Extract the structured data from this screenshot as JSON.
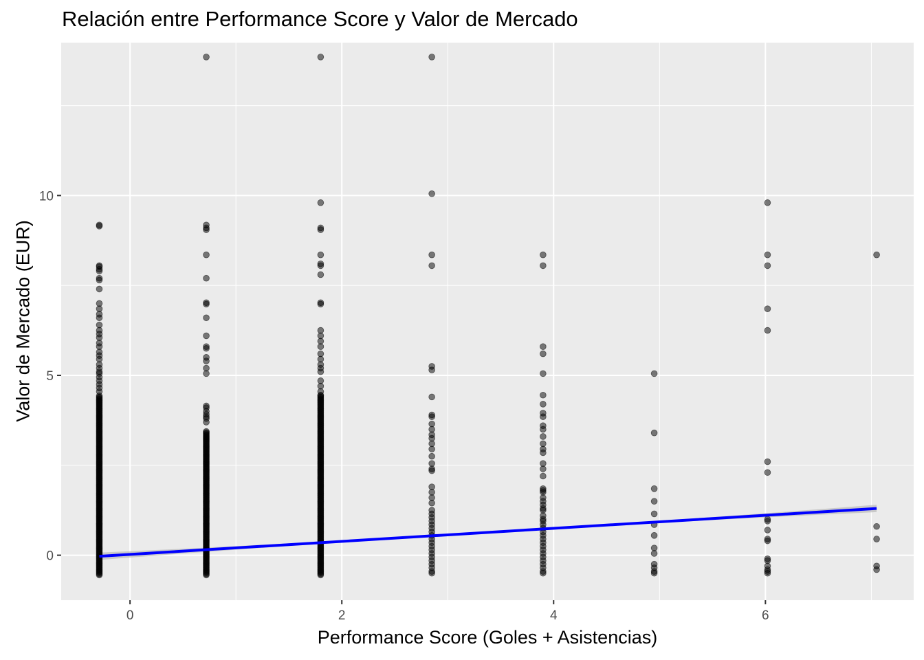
{
  "chart_data": {
    "type": "scatter",
    "title": "Relación entre Performance Score y Valor de Mercado",
    "xlabel": "Performance Score (Goles + Asistencias)",
    "ylabel": "Valor de Mercado (EUR)",
    "xlim": [
      -0.65,
      7.4
    ],
    "ylim": [
      -1.25,
      14.25
    ],
    "x_ticks": [
      0,
      2,
      4,
      6
    ],
    "y_ticks": [
      0,
      5,
      10
    ],
    "grid": true,
    "legend": "none",
    "colors": {
      "panel_background": "#EBEBEB",
      "grid": "#FFFFFF",
      "points": "#000000",
      "trend_line": "#0000FF",
      "confidence_band": "#BEBEBE"
    },
    "series": [
      {
        "kind": "points",
        "groups": [
          {
            "x": -0.29,
            "dense_range": [
              -0.55,
              4.45
            ],
            "values": [
              9.18,
              9.15,
              8.05,
              8.02,
              7.95,
              7.9,
              7.7,
              7.65,
              7.4,
              7.0,
              6.85,
              6.7,
              6.6,
              6.4,
              6.25,
              6.15,
              6.05,
              5.9,
              5.8,
              5.65,
              5.55,
              5.45,
              5.3,
              5.2,
              5.1,
              5.05,
              4.95,
              4.85,
              4.75,
              4.65,
              4.55
            ]
          },
          {
            "x": 0.72,
            "dense_range": [
              -0.55,
              3.45
            ],
            "values": [
              13.85,
              9.18,
              9.1,
              9.05,
              8.35,
              7.7,
              7.02,
              6.98,
              6.6,
              6.1,
              5.8,
              5.75,
              5.5,
              5.4,
              5.2,
              5.05,
              4.15,
              4.1,
              4.0,
              3.92,
              3.85,
              3.8,
              3.7
            ]
          },
          {
            "x": 1.8,
            "dense_range": [
              -0.55,
              4.45
            ],
            "values": [
              13.85,
              9.8,
              9.1,
              9.05,
              8.35,
              8.1,
              8.05,
              7.8,
              7.02,
              6.98,
              6.25,
              6.1,
              5.95,
              5.8,
              5.6,
              5.45,
              5.3,
              5.2,
              5.1,
              4.85,
              4.7,
              4.55,
              4.45
            ]
          },
          {
            "x": 2.85,
            "values": [
              13.85,
              10.05,
              8.35,
              8.05,
              5.25,
              5.15,
              4.4,
              3.9,
              3.85,
              3.65,
              3.5,
              3.35,
              3.25,
              3.1,
              2.95,
              2.75,
              2.55,
              2.4,
              2.35,
              1.9,
              1.75,
              1.6,
              1.45,
              1.25,
              1.15,
              1.05,
              0.95,
              0.85,
              0.75,
              0.65,
              0.55,
              0.45,
              0.35,
              0.25,
              0.15,
              0.05,
              -0.05,
              -0.15,
              -0.25,
              -0.35,
              -0.45,
              -0.5
            ]
          },
          {
            "x": 3.9,
            "values": [
              8.35,
              8.05,
              5.8,
              5.6,
              5.05,
              4.45,
              4.2,
              3.95,
              3.85,
              3.6,
              3.5,
              3.3,
              3.1,
              2.95,
              2.85,
              2.55,
              2.4,
              2.2,
              1.85,
              1.8,
              1.75,
              1.6,
              1.5,
              1.4,
              1.3,
              1.25,
              1.1,
              1.0,
              0.95,
              0.85,
              0.75,
              0.65,
              0.55,
              0.45,
              0.35,
              0.25,
              0.15,
              0.05,
              -0.05,
              -0.15,
              -0.25,
              -0.35,
              -0.45,
              -0.5
            ]
          },
          {
            "x": 4.95,
            "values": [
              5.05,
              3.4,
              1.85,
              1.5,
              1.15,
              0.85,
              0.55,
              0.2,
              0.05,
              -0.25,
              -0.35,
              -0.45,
              -0.5
            ]
          },
          {
            "x": 6.02,
            "values": [
              9.8,
              8.35,
              8.05,
              6.85,
              6.25,
              2.6,
              2.3,
              1.0,
              0.95,
              0.7,
              0.45,
              0.4,
              -0.1,
              -0.15,
              -0.3,
              -0.4,
              -0.45,
              -0.5
            ]
          },
          {
            "x": 7.05,
            "values": [
              8.35,
              0.8,
              0.45,
              -0.3,
              -0.4
            ]
          }
        ]
      },
      {
        "kind": "trend_line",
        "method": "linear",
        "start": [
          -0.29,
          -0.03
        ],
        "end": [
          7.05,
          1.3
        ],
        "band_end_halfwidth": 0.09
      }
    ]
  }
}
